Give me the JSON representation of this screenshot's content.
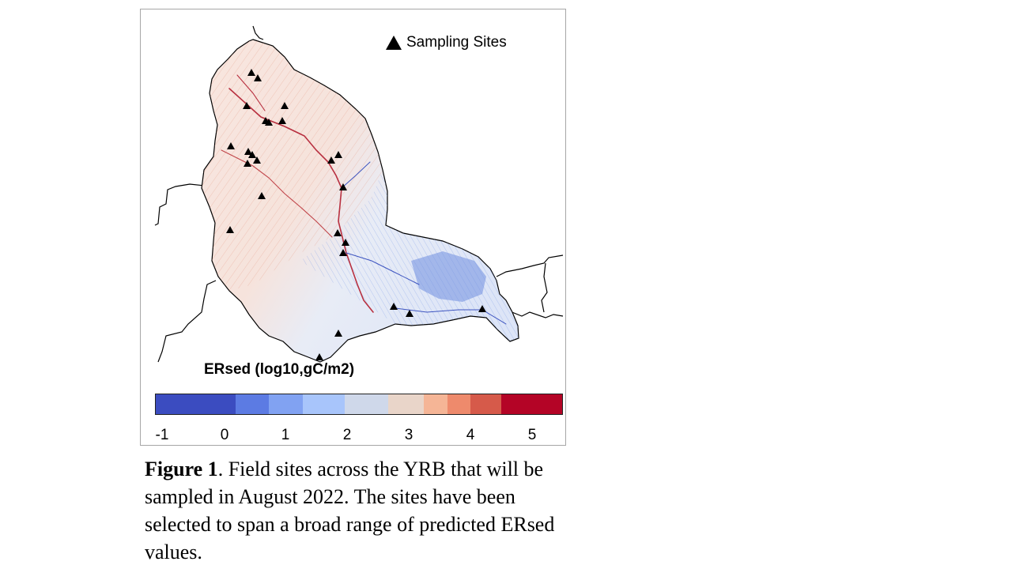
{
  "figure": {
    "legend_label": "Sampling Sites",
    "colorbar_title": "ERsed (log10,gC/m2)",
    "colorbar_colors": [
      "#3b4cc0",
      "#5c7be3",
      "#81a2f2",
      "#a8c5fb",
      "#cfd8ea",
      "#e9d5c9",
      "#f5b596",
      "#ee8a6c",
      "#d65a4a",
      "#b40426"
    ],
    "colorbar_ticks": [
      "-1",
      "0",
      "1",
      "2",
      "3",
      "4",
      "5"
    ]
  },
  "caption": {
    "label": "Figure 1",
    "text": ". Field sites across  the YRB that will be sampled  in August  2022. The sites have been selected to span a broad range  of predicted ERsed values."
  }
}
